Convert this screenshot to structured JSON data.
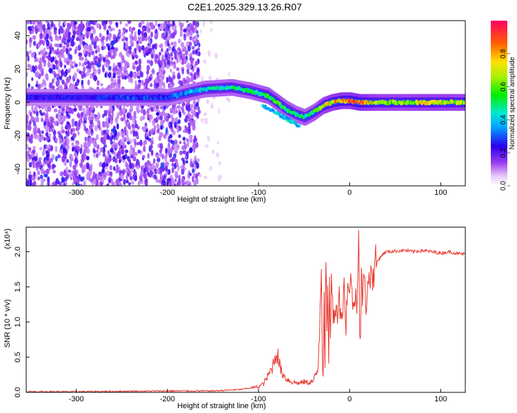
{
  "title": "C2E1.2025.329.13.26.R07",
  "colorbar": {
    "label": "Normalized spectral amplitude",
    "ticks": [
      0.0,
      0.2,
      0.4,
      0.6,
      0.8
    ],
    "tick_labels": [
      "0.0",
      "0.2",
      "0.4",
      "0.6",
      "0.8"
    ],
    "range": [
      0,
      1
    ]
  },
  "chart_data": [
    {
      "type": "heatmap",
      "xlabel": "Height of straight line (km)",
      "ylabel": "Frequency (Hz)",
      "xlim": [
        -355,
        127
      ],
      "ylim": [
        -50,
        49
      ],
      "xticks": [
        -300,
        -200,
        -100,
        0,
        100
      ],
      "xtick_labels": [
        "-300",
        "-200",
        "-100",
        "0",
        "100"
      ],
      "yticks": [
        -40,
        -20,
        0,
        20,
        40
      ],
      "ytick_labels": [
        "-40",
        "-20",
        "0",
        "20",
        "40"
      ],
      "colorscale": "rainbow",
      "description_track": {
        "x": [
          -355,
          -300,
          -250,
          -200,
          -160,
          -130,
          -110,
          -90,
          -80,
          -70,
          -60,
          -50,
          -40,
          -30,
          -20,
          -10,
          0,
          10,
          30,
          60,
          90,
          127
        ],
        "y": [
          3,
          3,
          3,
          3,
          8,
          9,
          7,
          4,
          0,
          -4,
          -7,
          -9,
          -6,
          -2,
          0,
          1,
          1,
          0,
          0,
          0,
          0,
          0
        ],
        "amplitude": [
          0.25,
          0.25,
          0.3,
          0.3,
          0.45,
          0.5,
          0.5,
          0.55,
          0.6,
          0.55,
          0.5,
          0.5,
          0.55,
          0.7,
          0.8,
          0.85,
          0.9,
          0.95,
          0.7,
          0.7,
          0.75,
          0.7
        ]
      },
      "noise_region_xlim": [
        -355,
        -165
      ]
    },
    {
      "type": "line",
      "xlabel": "Height of straight line (km)",
      "ylabel": "SNR (10 * v/v)",
      "y_multiplier_label": "(x10⁴)",
      "xlim": [
        -355,
        127
      ],
      "ylim": [
        0,
        2.35
      ],
      "xticks": [
        -300,
        -200,
        -100,
        0,
        100
      ],
      "xtick_labels": [
        "-300",
        "-200",
        "-100",
        "0",
        "100"
      ],
      "yticks": [
        0.0,
        0.5,
        1.0,
        1.5,
        2.0
      ],
      "ytick_labels": [
        "0.0",
        "0.5",
        "1.0",
        "1.5",
        "2.0"
      ],
      "color": "#e8382e",
      "series": [
        {
          "x": [
            -355,
            -300,
            -200,
            -150,
            -120,
            -100,
            -95,
            -90,
            -85,
            -82,
            -80,
            -78,
            -75,
            -70,
            -65,
            -60,
            -55,
            -50,
            -45,
            -40,
            -35,
            -33,
            -31,
            -30,
            -29,
            -28,
            -27,
            -26,
            -25,
            -24,
            -23,
            -22,
            -21,
            -20,
            -18,
            -16,
            -14,
            -12,
            -10,
            -8,
            -6,
            -4,
            -2,
            0,
            2,
            4,
            6,
            8,
            10,
            11,
            12,
            13,
            14,
            16,
            18,
            20,
            22,
            24,
            26,
            28,
            30,
            35,
            40,
            50,
            60,
            70,
            80,
            90,
            100,
            110,
            120,
            127
          ],
          "y": [
            0.01,
            0.01,
            0.02,
            0.02,
            0.04,
            0.08,
            0.12,
            0.22,
            0.35,
            0.5,
            0.6,
            0.45,
            0.3,
            0.2,
            0.16,
            0.14,
            0.13,
            0.15,
            0.14,
            0.16,
            0.3,
            0.9,
            1.85,
            0.6,
            0.3,
            1.4,
            0.5,
            1.9,
            0.8,
            1.3,
            0.6,
            1.5,
            0.9,
            1.6,
            1.0,
            1.3,
            1.1,
            1.4,
            1.2,
            1.1,
            1.5,
            1.0,
            1.6,
            1.3,
            1.7,
            1.1,
            1.4,
            1.3,
            2.35,
            1.0,
            0.75,
            1.6,
            1.4,
            1.6,
            1.2,
            1.7,
            1.5,
            1.8,
            1.6,
            1.9,
            1.85,
            1.95,
            2.0,
            2.01,
            2.02,
            2.0,
            2.02,
            2.0,
            1.98,
            2.0,
            1.97,
            1.97
          ]
        }
      ]
    }
  ]
}
